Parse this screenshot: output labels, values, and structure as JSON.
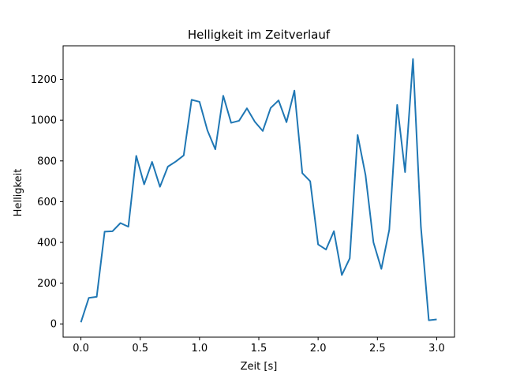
{
  "chart_data": {
    "type": "line",
    "title": "Helligkeit im Zeitverlauf",
    "xlabel": "Zeit [s]",
    "ylabel": "Helligkeit",
    "xlim": [
      -0.15,
      3.15
    ],
    "ylim": [
      -65,
      1365
    ],
    "x_ticks": [
      0.0,
      0.5,
      1.0,
      1.5,
      2.0,
      2.5,
      3.0
    ],
    "x_tick_labels": [
      "0.0",
      "0.5",
      "1.0",
      "1.5",
      "2.0",
      "2.5",
      "3.0"
    ],
    "y_ticks": [
      0,
      200,
      400,
      600,
      800,
      1000,
      1200
    ],
    "y_tick_labels": [
      "0",
      "200",
      "400",
      "600",
      "800",
      "1000",
      "1200"
    ],
    "grid": false,
    "series": [
      {
        "color": "#1f77b4",
        "x": [
          0.0,
          0.0667,
          0.1333,
          0.2,
          0.2667,
          0.3333,
          0.4,
          0.4667,
          0.5333,
          0.6,
          0.6667,
          0.7333,
          0.8,
          0.8667,
          0.9333,
          1.0,
          1.0667,
          1.1333,
          1.2,
          1.2667,
          1.3333,
          1.4,
          1.4667,
          1.5333,
          1.6,
          1.6667,
          1.7333,
          1.8,
          1.8667,
          1.9333,
          2.0,
          2.0667,
          2.1333,
          2.2,
          2.2667,
          2.3333,
          2.4,
          2.4667,
          2.5333,
          2.6,
          2.6667,
          2.7333,
          2.8,
          2.8667,
          2.9333,
          3.0
        ],
        "values": [
          8,
          128,
          133,
          453,
          455,
          495,
          477,
          825,
          685,
          795,
          673,
          772,
          797,
          827,
          1100,
          1090,
          950,
          857,
          1120,
          987,
          997,
          1058,
          992,
          947,
          1060,
          1097,
          990,
          1145,
          740,
          700,
          390,
          365,
          455,
          240,
          322,
          927,
          730,
          400,
          270,
          462,
          1075,
          745,
          1300,
          477,
          18,
          22
        ]
      }
    ]
  }
}
